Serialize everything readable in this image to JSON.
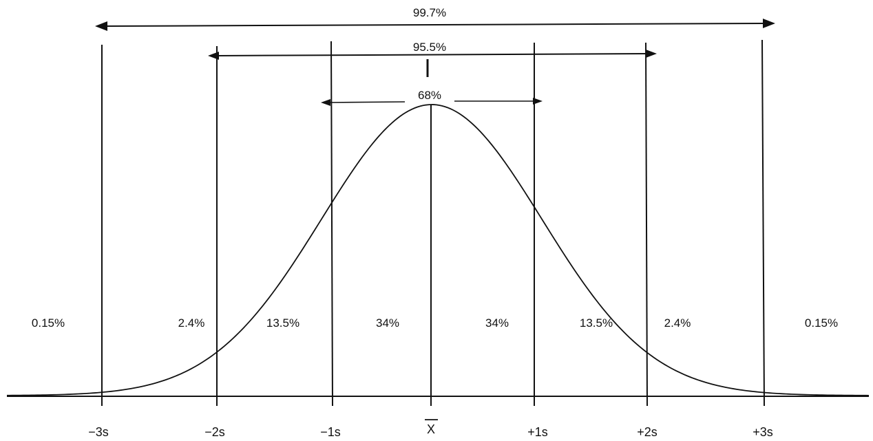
{
  "diagram": {
    "brackets": [
      {
        "id": "three-sd",
        "label": "99.7%"
      },
      {
        "id": "two-sd",
        "label": "95.5%"
      },
      {
        "id": "one-sd",
        "label": "68%"
      }
    ],
    "region_labels": [
      "0.15%",
      "2.4%",
      "13.5%",
      "34%",
      "34%",
      "13.5%",
      "2.4%",
      "0.15%"
    ],
    "axis_labels": [
      "−3s",
      "−2s",
      "−1s",
      "X",
      "+1s",
      "+2s",
      "+3s"
    ],
    "mean_label_has_overbar": true,
    "colors": {
      "ink": "#111111",
      "background": "#ffffff"
    }
  }
}
